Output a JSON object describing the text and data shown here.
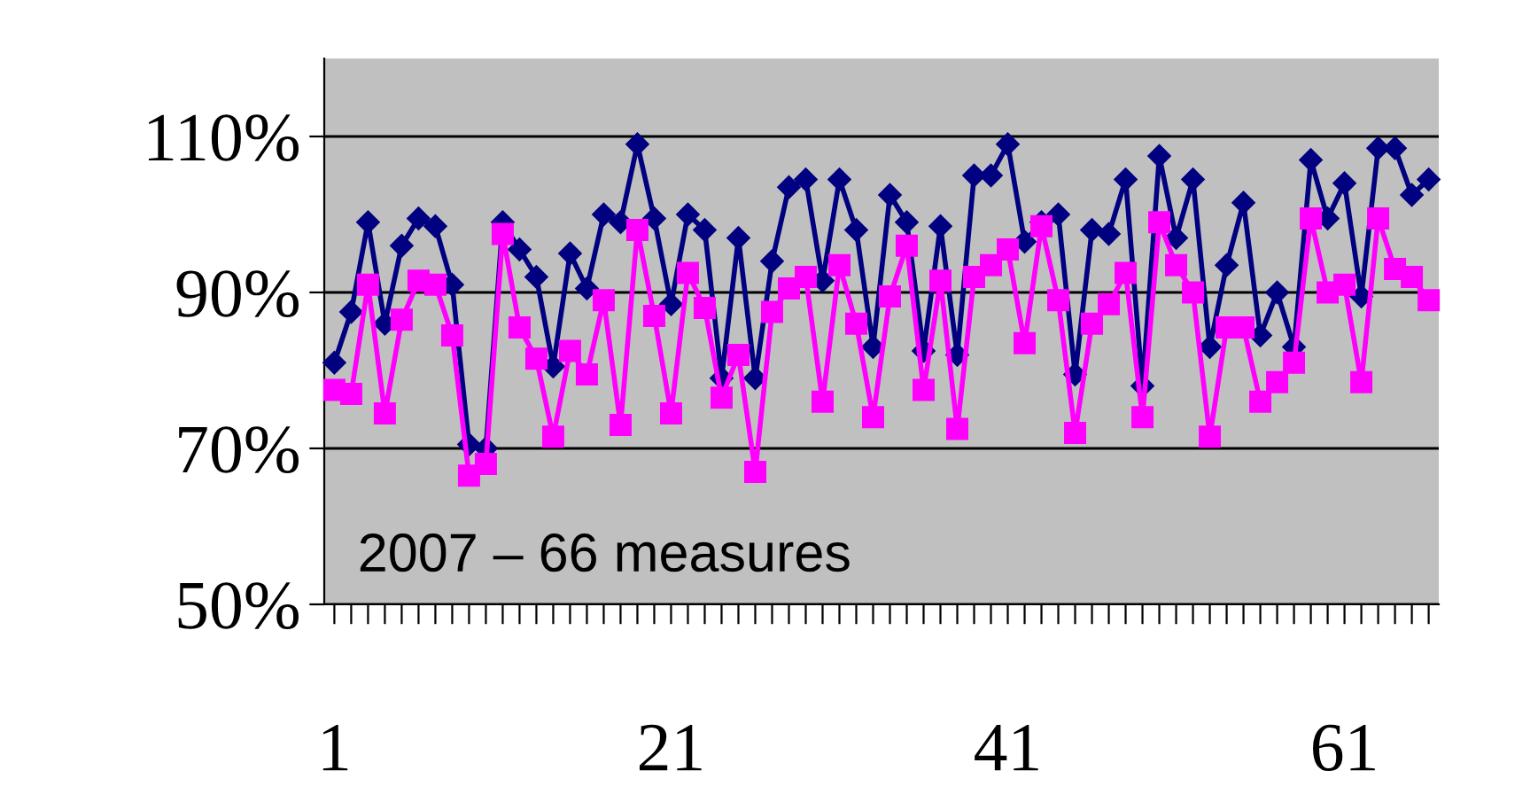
{
  "chart_data": {
    "type": "line",
    "categories": [
      "1",
      null,
      null,
      null,
      null,
      null,
      null,
      null,
      null,
      null,
      null,
      null,
      null,
      null,
      null,
      null,
      null,
      null,
      null,
      null,
      "21",
      null,
      null,
      null,
      null,
      null,
      null,
      null,
      null,
      null,
      null,
      null,
      null,
      null,
      null,
      null,
      null,
      null,
      null,
      null,
      "41",
      null,
      null,
      null,
      null,
      null,
      null,
      null,
      null,
      null,
      null,
      null,
      null,
      null,
      null,
      null,
      null,
      null,
      null,
      null,
      "61",
      null,
      null,
      null,
      null,
      null
    ],
    "series": [
      {
        "color": "#000080",
        "marker": "diamond",
        "values": [
          81,
          87.5,
          99,
          86,
          96,
          99.5,
          98.5,
          91,
          70.5,
          70,
          99,
          95.5,
          92,
          80.5,
          95,
          90.5,
          100,
          99,
          109,
          99.5,
          88.5,
          100,
          98,
          79,
          97,
          79,
          94,
          103.5,
          104.5,
          91.5,
          104.5,
          98,
          83,
          102.5,
          99,
          82.5,
          98.5,
          82,
          105,
          105,
          109,
          96.5,
          99,
          100,
          79.5,
          98,
          97.5,
          104.5,
          78,
          107.5,
          97,
          104.5,
          83,
          93.5,
          101.5,
          84.5,
          90,
          83,
          107,
          99.5,
          104,
          89.5,
          108.5,
          108.5,
          102.5,
          104.5
        ]
      },
      {
        "color": "#ff00ff",
        "marker": "square",
        "values": [
          77.5,
          77,
          91,
          74.5,
          86.5,
          91.5,
          91,
          84.5,
          66.5,
          68,
          97.5,
          85.5,
          81.5,
          71.5,
          82.5,
          79.5,
          89,
          73,
          98,
          87,
          74.5,
          92.5,
          88,
          76.5,
          82,
          67,
          87.5,
          90.5,
          92,
          76,
          93.5,
          86,
          74,
          89.5,
          96,
          77.5,
          91.5,
          72.5,
          92,
          93.5,
          95.5,
          83.5,
          98.5,
          89,
          72,
          86,
          88.5,
          92.5,
          74,
          99,
          93.5,
          90,
          71.5,
          85.5,
          85.5,
          76,
          78.5,
          81,
          99.5,
          90,
          91,
          78.5,
          99.5,
          93,
          92,
          89
        ]
      }
    ],
    "ylim": [
      50,
      120
    ],
    "yticks": [
      {
        "value": 50,
        "label": "50%"
      },
      {
        "value": 70,
        "label": "70%"
      },
      {
        "value": 90,
        "label": "90%"
      },
      {
        "value": 110,
        "label": "110%"
      }
    ],
    "grid": "y",
    "line_style": "solid",
    "annotations": [
      "2007 – 66 measures"
    ]
  }
}
